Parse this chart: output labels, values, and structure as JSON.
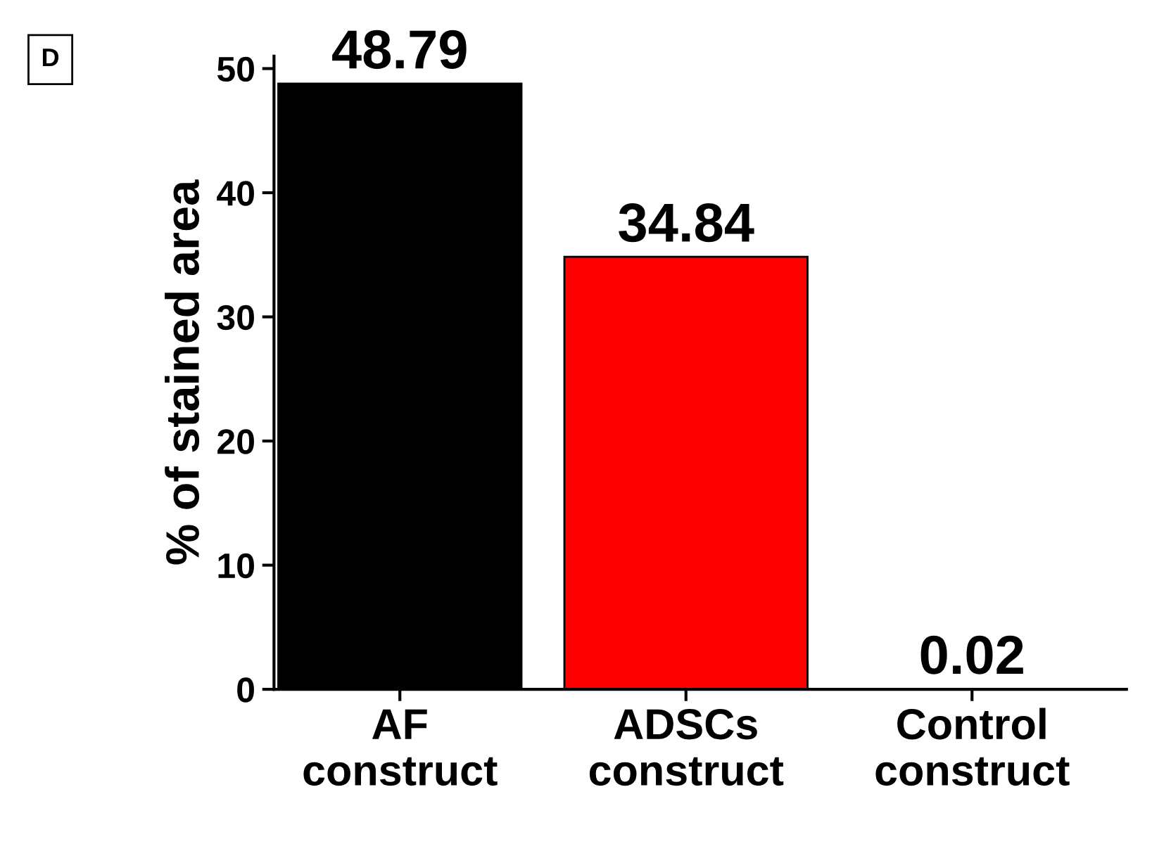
{
  "chart_data": {
    "type": "bar",
    "categories": [
      "AF\nconstruct",
      "ADSCs\nconstruct",
      "Control\nconstruct"
    ],
    "values": [
      48.79,
      34.84,
      0.02
    ],
    "colors": [
      "#000000",
      "#ff0000",
      "#ff0000"
    ],
    "ylabel": "% of stained area",
    "ylim": [
      0,
      51
    ],
    "yticks": [
      0,
      10,
      20,
      30,
      40,
      50
    ],
    "data_labels": true,
    "grid": false,
    "legend": false,
    "annotations": [
      "D"
    ]
  }
}
